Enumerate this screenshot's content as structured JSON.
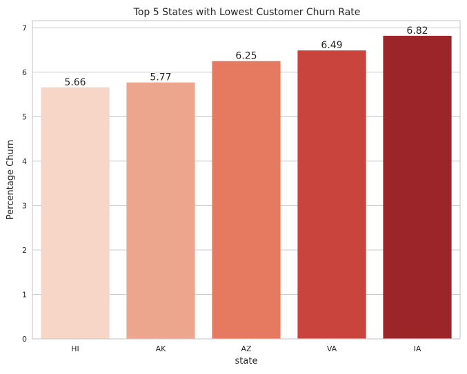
{
  "chart_data": {
    "type": "bar",
    "title": "Top 5 States with Lowest Customer Churn Rate",
    "xlabel": "state",
    "ylabel": "Percentage Churn",
    "categories": [
      "HI",
      "AK",
      "AZ",
      "VA",
      "IA"
    ],
    "values": [
      5.66,
      5.77,
      6.25,
      6.49,
      6.82
    ],
    "data_labels": [
      "5.66",
      "5.77",
      "6.25",
      "6.49",
      "6.82"
    ],
    "colors": [
      "#f7d5c7",
      "#eda68e",
      "#e57a60",
      "#c9443c",
      "#9c2529"
    ],
    "ylim": [
      0,
      7.16
    ],
    "yticks": [
      0,
      1,
      2,
      3,
      4,
      5,
      6,
      7
    ],
    "grid": true,
    "legend": "none"
  }
}
